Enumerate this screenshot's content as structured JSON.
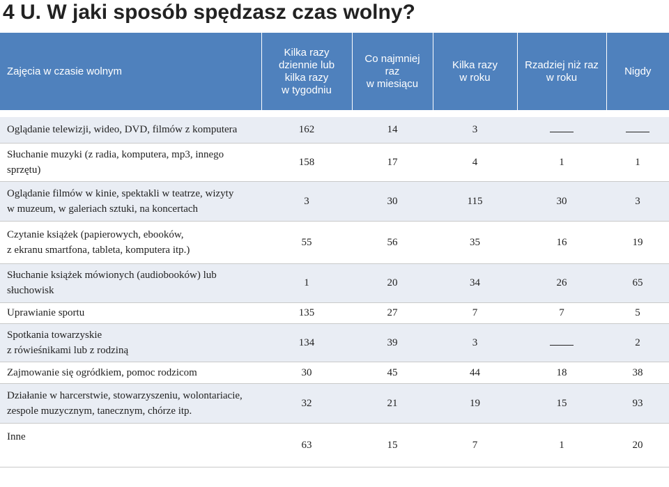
{
  "title": "4 U. W jaki sposób spędzasz czas wolny?",
  "table": {
    "headers": [
      "Zajęcia w czasie wolnym",
      "Kilka razy\ndziennie lub\nkilka razy\nw tygodniu",
      "Co najmniej\nraz\nw miesiącu",
      "Kilka razy\nw roku",
      "Rzadziej niż raz\nw roku",
      "Nigdy"
    ],
    "rows": [
      {
        "activity": "Oglądanie telewizji, wideo, DVD, filmów z komputera",
        "values": [
          "162",
          "14",
          "3",
          "",
          ""
        ]
      },
      {
        "activity": "Słuchanie muzyki (z radia, komputera, mp3, innego\nsprzętu)",
        "values": [
          "158",
          "17",
          "4",
          "1",
          "1"
        ]
      },
      {
        "activity": "Oglądanie filmów w kinie, spektakli w teatrze, wizyty\nw muzeum, w galeriach sztuki, na koncertach",
        "values": [
          "3",
          "30",
          "115",
          "30",
          "3"
        ]
      },
      {
        "activity": "Czytanie książek (papierowych, ebooków,\nz ekranu smartfona, tableta, komputera itp.)",
        "values": [
          "55",
          "56",
          "35",
          "16",
          "19"
        ]
      },
      {
        "activity": "Słuchanie książek mówionych (audiobooków) lub\nsłuchowisk",
        "values": [
          "1",
          "20",
          "34",
          "26",
          "65"
        ]
      },
      {
        "activity": "Uprawianie sportu",
        "values": [
          "135",
          "27",
          "7",
          "7",
          "5"
        ]
      },
      {
        "activity": "Spotkania towarzyskie\nz rówieśnikami lub z rodziną",
        "values": [
          "134",
          "39",
          "3",
          "",
          "2"
        ]
      },
      {
        "activity": "Zajmowanie się ogródkiem, pomoc rodzicom",
        "values": [
          "30",
          "45",
          "44",
          "18",
          "38"
        ]
      },
      {
        "activity": "Działanie w harcerstwie, stowarzyszeniu, wolontariacie,\nzespole muzycznym, tanecznym, chórze itp.",
        "values": [
          "32",
          "21",
          "19",
          "15",
          "93"
        ]
      },
      {
        "activity": "Inne",
        "values": [
          "63",
          "15",
          "7",
          "1",
          "20"
        ]
      }
    ]
  },
  "colors": {
    "header_bg": "#4f81bd",
    "band_bg": "#e9edf4"
  }
}
